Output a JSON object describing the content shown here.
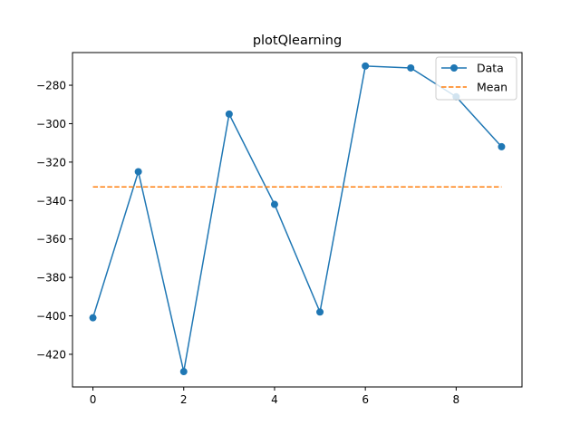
{
  "chart_data": {
    "type": "line",
    "title": "plotQlearning",
    "xlabel": "",
    "ylabel": "",
    "x": [
      0,
      1,
      2,
      3,
      4,
      5,
      6,
      7,
      8,
      9
    ],
    "series": [
      {
        "name": "Data",
        "values": [
          -401,
          -325,
          -429,
          -295,
          -342,
          -398,
          -270,
          -271,
          -286,
          -312
        ],
        "color": "#1f77b4",
        "marker": "circle",
        "linestyle": "solid"
      },
      {
        "name": "Mean",
        "values": [
          -332.9,
          -332.9,
          -332.9,
          -332.9,
          -332.9,
          -332.9,
          -332.9,
          -332.9,
          -332.9,
          -332.9
        ],
        "color": "#ff7f0e",
        "linestyle": "dashed"
      }
    ],
    "xlim": [
      -0.45,
      9.45
    ],
    "ylim": [
      -437,
      -263
    ],
    "xticks": [
      0,
      2,
      4,
      6,
      8
    ],
    "yticks": [
      -420,
      -400,
      -380,
      -360,
      -340,
      -320,
      -300,
      -280
    ],
    "grid": false,
    "legend_position": "top-right"
  }
}
